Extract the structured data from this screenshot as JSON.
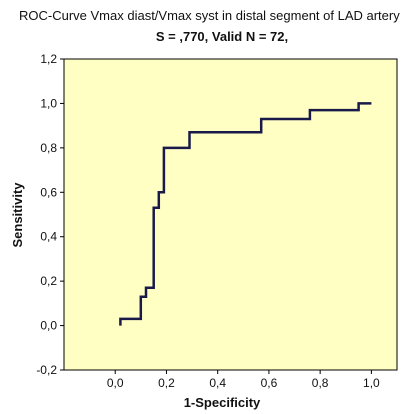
{
  "chart_data": {
    "type": "line",
    "title": "ROC-Curve Vmax diast/Vmax syst in distal segment of LAD artery",
    "subtitle": "S = ,770, Valid N = 72,",
    "xlabel": "1-Specificity",
    "ylabel": "Sensitivity",
    "xlim": [
      -0.2,
      1.1
    ],
    "ylim": [
      -0.2,
      1.2
    ],
    "xticks": [
      0.0,
      0.2,
      0.4,
      0.6,
      0.8,
      1.0
    ],
    "xtick_labels": [
      "0,0",
      "0,2",
      "0,4",
      "0,6",
      "0,8",
      "1,0"
    ],
    "yticks": [
      -0.2,
      0.0,
      0.2,
      0.4,
      0.6,
      0.8,
      1.0,
      1.2
    ],
    "ytick_labels": [
      "-0,2",
      "0,0",
      "0,2",
      "0,4",
      "0,6",
      "0,8",
      "1,0",
      "1,2"
    ],
    "grid": false,
    "series": [
      {
        "x": [
          0.02,
          0.02,
          0.1,
          0.1,
          0.12,
          0.12,
          0.15,
          0.15,
          0.17,
          0.17,
          0.19,
          0.19,
          0.29,
          0.29,
          0.57,
          0.57,
          0.76,
          0.76,
          0.95,
          0.95,
          1.0
        ],
        "y": [
          0.0,
          0.03,
          0.03,
          0.13,
          0.13,
          0.17,
          0.17,
          0.53,
          0.53,
          0.6,
          0.6,
          0.8,
          0.8,
          0.87,
          0.87,
          0.93,
          0.93,
          0.97,
          0.97,
          1.0,
          1.0
        ]
      }
    ],
    "colors": {
      "plot_background": "#ffffc4",
      "line": "#1a1a4a",
      "frame": "#000000"
    }
  }
}
